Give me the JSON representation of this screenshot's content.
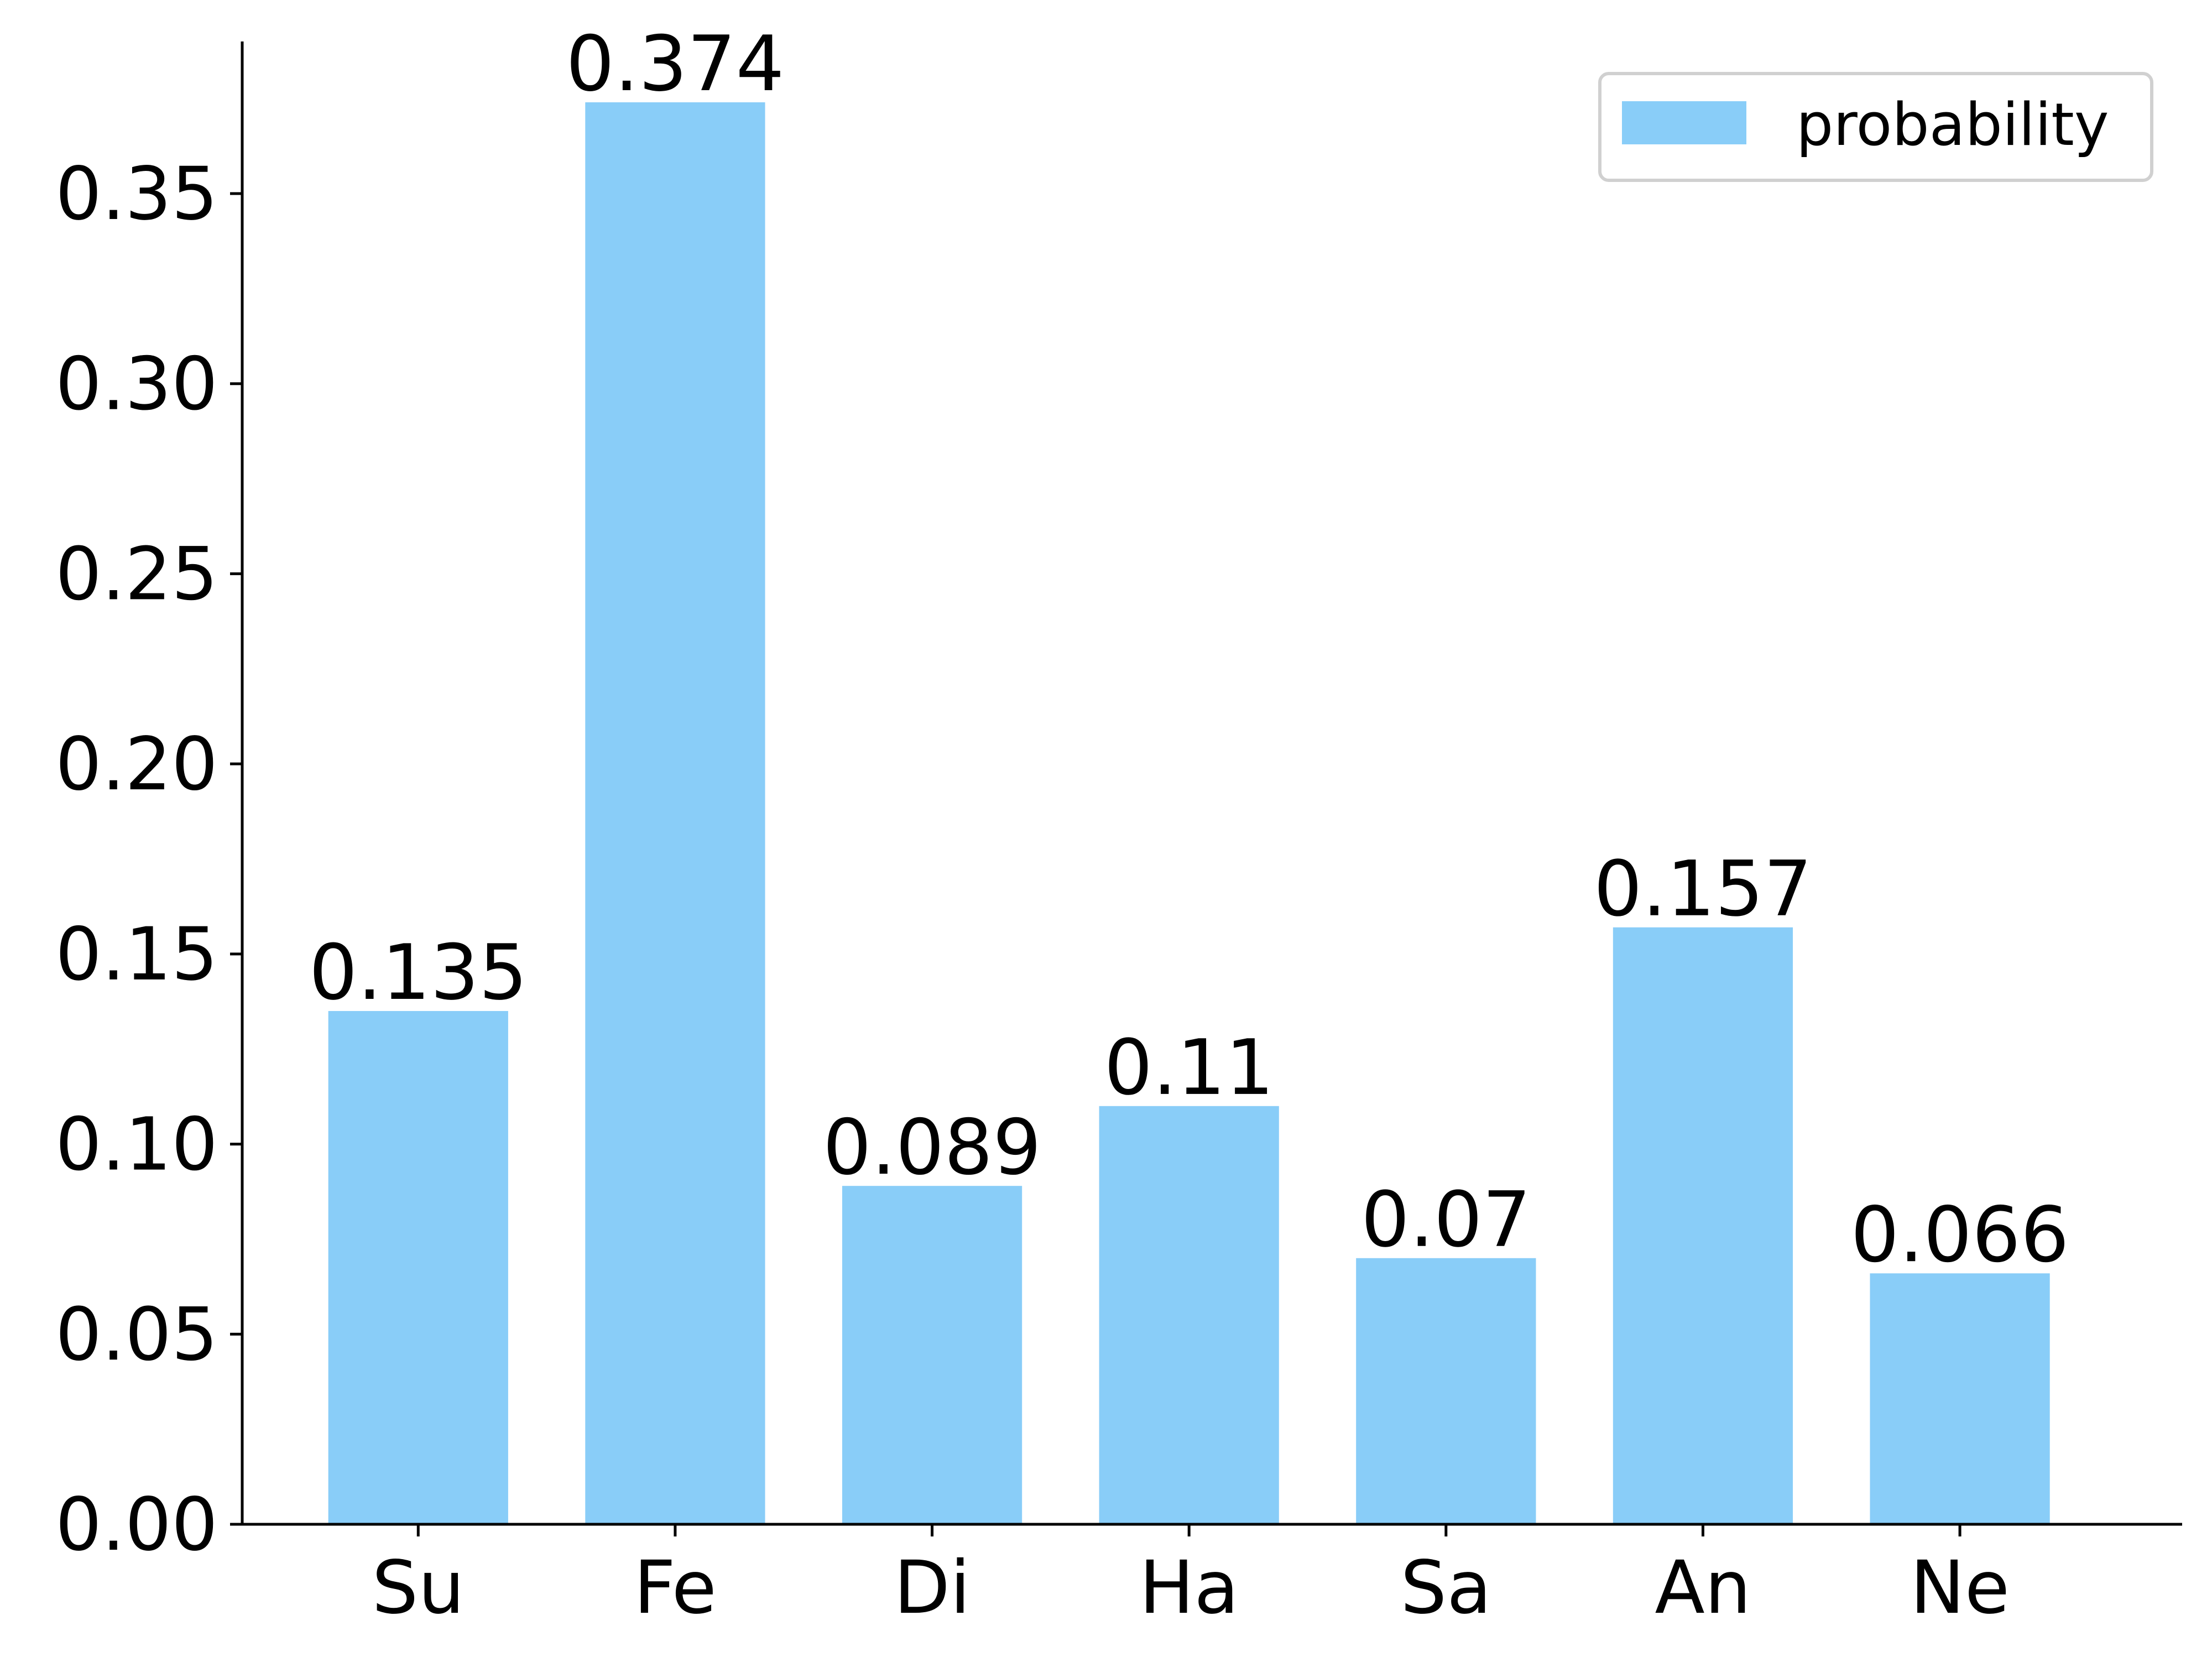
{
  "chart_data": {
    "type": "bar",
    "categories": [
      "Su",
      "Fe",
      "Di",
      "Ha",
      "Sa",
      "An",
      "Ne"
    ],
    "series": [
      {
        "name": "probability",
        "values": [
          0.135,
          0.374,
          0.089,
          0.11,
          0.07,
          0.157,
          0.066
        ],
        "labels": [
          "0.135",
          "0.374",
          "0.089",
          "0.11",
          "0.07",
          "0.157",
          "0.066"
        ],
        "color": "#89CDF8"
      }
    ],
    "ylim": [
      0,
      0.39
    ],
    "yticks": [
      0.0,
      0.05,
      0.1,
      0.15,
      0.2,
      0.25,
      0.3,
      0.35
    ],
    "ytick_labels": [
      "0.00",
      "0.05",
      "0.10",
      "0.15",
      "0.20",
      "0.25",
      "0.30",
      "0.35"
    ],
    "title": "",
    "xlabel": "",
    "ylabel": "",
    "grid": false,
    "legend": {
      "position": "top-right"
    }
  }
}
